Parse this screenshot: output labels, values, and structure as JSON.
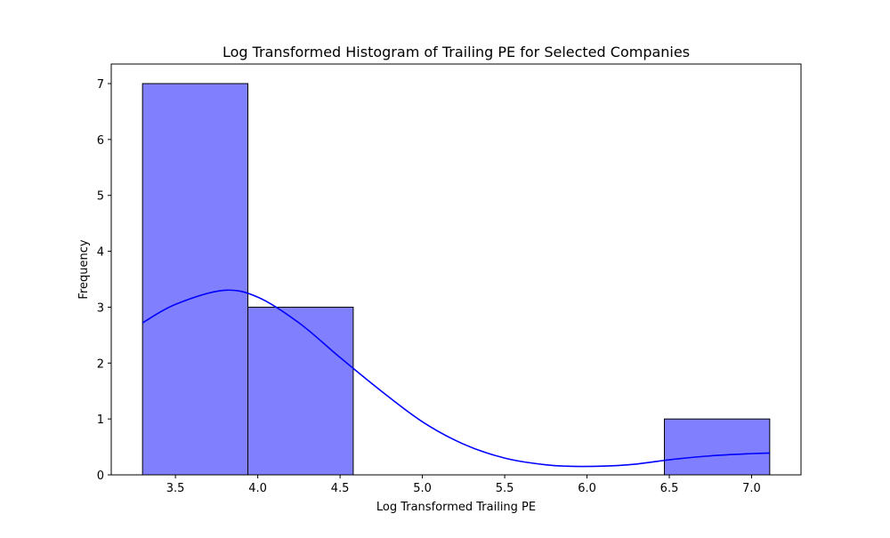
{
  "chart_data": {
    "type": "bar",
    "title": "Log Transformed Histogram of Trailing PE for Selected Companies",
    "xlabel": "Log Transformed Trailing PE",
    "ylabel": "Frequency",
    "xlim": [
      3.11,
      7.3
    ],
    "ylim": [
      0,
      7.35
    ],
    "x_ticks": [
      3.5,
      4.0,
      4.5,
      5.0,
      5.5,
      6.0,
      6.5,
      7.0
    ],
    "x_tick_labels": [
      "3.5",
      "4.0",
      "4.5",
      "5.0",
      "5.5",
      "6.0",
      "6.5",
      "7.0"
    ],
    "y_ticks": [
      0,
      1,
      2,
      3,
      4,
      5,
      6,
      7
    ],
    "y_tick_labels": [
      "0",
      "1",
      "2",
      "3",
      "4",
      "5",
      "6",
      "7"
    ],
    "bins": [
      {
        "x0": 3.3,
        "x1": 3.94,
        "count": 7
      },
      {
        "x0": 3.94,
        "x1": 4.58,
        "count": 3
      },
      {
        "x0": 4.58,
        "x1": 5.21,
        "count": 0
      },
      {
        "x0": 5.21,
        "x1": 5.84,
        "count": 0
      },
      {
        "x0": 5.84,
        "x1": 6.47,
        "count": 0
      },
      {
        "x0": 6.47,
        "x1": 7.11,
        "count": 1
      }
    ],
    "kde": {
      "x": [
        3.3,
        3.5,
        3.79,
        4.0,
        4.25,
        4.5,
        4.75,
        5.0,
        5.25,
        5.5,
        5.75,
        5.97,
        6.25,
        6.5,
        6.75,
        7.0,
        7.11
      ],
      "y": [
        2.72,
        3.05,
        3.3,
        3.18,
        2.72,
        2.1,
        1.5,
        0.95,
        0.55,
        0.3,
        0.18,
        0.15,
        0.18,
        0.27,
        0.34,
        0.38,
        0.39
      ]
    },
    "grid": false,
    "colors": {
      "bar_fill": "#8080ff",
      "bar_edge": "#000000",
      "kde_line": "#0000ff"
    }
  }
}
